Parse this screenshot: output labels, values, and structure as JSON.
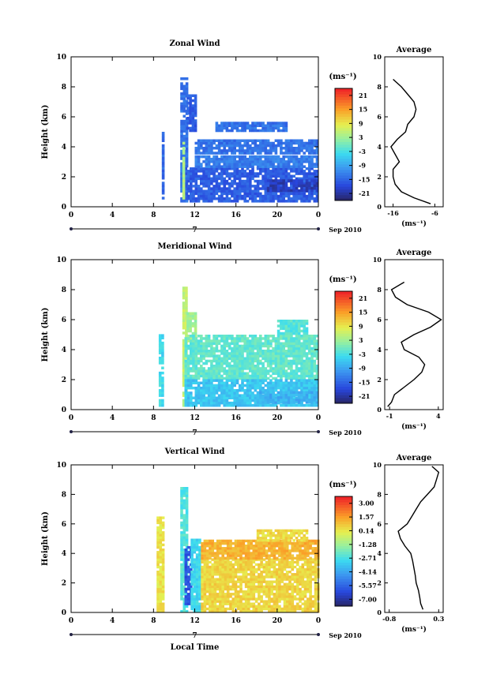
{
  "figure": {
    "date_label": "Sep 2010",
    "xlabel": "Local Time",
    "ylabel": "Height (km)",
    "unit": "(ms⁻¹)",
    "avg_title": "Average",
    "x_ticks": [
      "0",
      "4",
      "8",
      "12",
      "16",
      "20",
      "0"
    ],
    "day_label": "7",
    "y_ticks": [
      "0",
      "2",
      "4",
      "6",
      "8",
      "10"
    ]
  },
  "chart_data": [
    {
      "type": "heatmap",
      "title": "Zonal Wind",
      "xlabel": "",
      "ylabel": "Height (km)",
      "xlim": [
        0,
        24
      ],
      "ylim": [
        0,
        10
      ],
      "colorbar": {
        "unit": "(ms⁻¹)",
        "ticks": [
          "21",
          "15",
          "9",
          "3",
          "-3",
          "-9",
          "-15",
          "-21"
        ],
        "range": [
          -24,
          24
        ]
      },
      "regions": [
        {
          "t0": 8.8,
          "t1": 9.0,
          "h0": 0.5,
          "h1": 5.0,
          "v": -15
        },
        {
          "t0": 10.6,
          "t1": 11.2,
          "h0": 0.3,
          "h1": 8.5,
          "v": -14
        },
        {
          "t0": 11.2,
          "t1": 12.0,
          "h0": 5.0,
          "h1": 7.5,
          "v": -16
        },
        {
          "t0": 11.0,
          "t1": 24.0,
          "h0": 0.3,
          "h1": 2.6,
          "v": -16
        },
        {
          "t0": 12.0,
          "t1": 24.0,
          "h0": 3.5,
          "h1": 4.5,
          "v": -14
        },
        {
          "t0": 12.0,
          "t1": 24.0,
          "h0": 2.6,
          "h1": 3.4,
          "v": -13
        },
        {
          "t0": 19.0,
          "t1": 24.0,
          "h0": 1.0,
          "h1": 1.8,
          "v": -20
        },
        {
          "t0": 14.0,
          "t1": 21.0,
          "h0": 5.0,
          "h1": 5.6,
          "v": -14
        },
        {
          "t0": 10.8,
          "t1": 11.0,
          "h0": 0.5,
          "h1": 4.2,
          "v": 4
        }
      ],
      "average": {
        "xlim": [
          -18,
          -4
        ],
        "x_ticks": [
          -16,
          -6
        ],
        "xlabel": "(ms⁻¹)",
        "h": [
          0.2,
          0.6,
          1.0,
          1.5,
          2.0,
          2.5,
          3.0,
          3.5,
          4.0,
          4.5,
          5.0,
          5.5,
          6.0,
          6.5,
          7.0,
          7.5,
          8.0,
          8.5
        ],
        "val": [
          -7,
          -11,
          -14,
          -15.5,
          -16,
          -16,
          -14.5,
          -15.5,
          -16.5,
          -15,
          -13,
          -12.5,
          -11,
          -10.5,
          -11,
          -12.5,
          -14,
          -16
        ]
      }
    },
    {
      "type": "heatmap",
      "title": "Meridional Wind",
      "xlabel": "",
      "ylabel": "Height (km)",
      "xlim": [
        0,
        24
      ],
      "ylim": [
        0,
        10
      ],
      "colorbar": {
        "unit": "(ms⁻¹)",
        "ticks": [
          "21",
          "15",
          "9",
          "3",
          "-3",
          "-9",
          "-15",
          "-21"
        ],
        "range": [
          -24,
          24
        ]
      },
      "regions": [
        {
          "t0": 8.5,
          "t1": 9.0,
          "h0": 0.2,
          "h1": 5.0,
          "v": -4
        },
        {
          "t0": 10.8,
          "t1": 11.2,
          "h0": 0.2,
          "h1": 8.2,
          "v": 6
        },
        {
          "t0": 11.2,
          "t1": 12.0,
          "h0": 4.5,
          "h1": 6.5,
          "v": 3
        },
        {
          "t0": 11.0,
          "t1": 24.0,
          "h0": 2.0,
          "h1": 5.0,
          "v": -1
        },
        {
          "t0": 11.0,
          "t1": 24.0,
          "h0": 0.2,
          "h1": 2.0,
          "v": -6
        },
        {
          "t0": 18.0,
          "t1": 24.0,
          "h0": 0.4,
          "h1": 1.2,
          "v": -8
        },
        {
          "t0": 20.0,
          "t1": 23.0,
          "h0": 5.0,
          "h1": 6.0,
          "v": -2
        }
      ],
      "average": {
        "xlim": [
          -1.5,
          4.5
        ],
        "x_ticks": [
          -1,
          4
        ],
        "xlabel": "(ms⁻¹)",
        "h": [
          0.2,
          0.5,
          1.0,
          1.5,
          2.0,
          2.5,
          3.0,
          3.5,
          4.0,
          4.5,
          5.0,
          5.5,
          6.0,
          6.5,
          7.0,
          7.5,
          8.0,
          8.5
        ],
        "val": [
          -1.2,
          -0.8,
          -0.5,
          0.5,
          1.5,
          2.3,
          2.6,
          2.0,
          0.5,
          0.2,
          1.5,
          3.2,
          4.3,
          3.0,
          0.8,
          -0.4,
          -0.8,
          0.5
        ]
      }
    },
    {
      "type": "heatmap",
      "title": "Vertical Wind",
      "xlabel": "Local Time",
      "ylabel": "Height (km)",
      "xlim": [
        0,
        24
      ],
      "ylim": [
        0,
        10
      ],
      "colorbar": {
        "unit": "(ms⁻¹)",
        "ticks": [
          "3.00",
          "1.57",
          "0.14",
          "-1.28",
          "-2.71",
          "-4.14",
          "-5.57",
          "-7.00"
        ],
        "range": [
          -7.71,
          3.71
        ]
      },
      "regions": [
        {
          "t0": 8.3,
          "t1": 8.9,
          "h0": 0.0,
          "h1": 6.5,
          "v": 0.3
        },
        {
          "t0": 10.6,
          "t1": 11.2,
          "h0": 0.0,
          "h1": 8.5,
          "v": -2.5
        },
        {
          "t0": 11.0,
          "t1": 11.6,
          "h0": 0.5,
          "h1": 4.5,
          "v": -6.0
        },
        {
          "t0": 11.6,
          "t1": 12.6,
          "h0": 0.0,
          "h1": 5.0,
          "v": -3.0
        },
        {
          "t0": 12.6,
          "t1": 24.0,
          "h0": 0.0,
          "h1": 3.6,
          "v": 0.6
        },
        {
          "t0": 12.6,
          "t1": 24.0,
          "h0": 3.6,
          "h1": 4.8,
          "v": 1.3
        },
        {
          "t0": 18.0,
          "t1": 23.0,
          "h0": 4.8,
          "h1": 5.6,
          "v": 0.5
        }
      ],
      "average": {
        "xlim": [
          -0.9,
          0.4
        ],
        "x_ticks": [
          -0.8,
          0.3
        ],
        "xlabel": "(ms⁻¹)",
        "h": [
          0.2,
          0.6,
          1.0,
          1.5,
          2.0,
          2.5,
          3.0,
          3.5,
          4.0,
          4.5,
          5.0,
          5.5,
          6.0,
          6.5,
          7.0,
          7.5,
          8.0,
          8.5,
          9.0,
          9.5,
          9.9
        ],
        "val": [
          -0.05,
          -0.1,
          -0.12,
          -0.15,
          -0.2,
          -0.22,
          -0.25,
          -0.28,
          -0.32,
          -0.45,
          -0.55,
          -0.6,
          -0.4,
          -0.3,
          -0.2,
          -0.1,
          0.05,
          0.2,
          0.25,
          0.3,
          0.15
        ]
      }
    }
  ]
}
